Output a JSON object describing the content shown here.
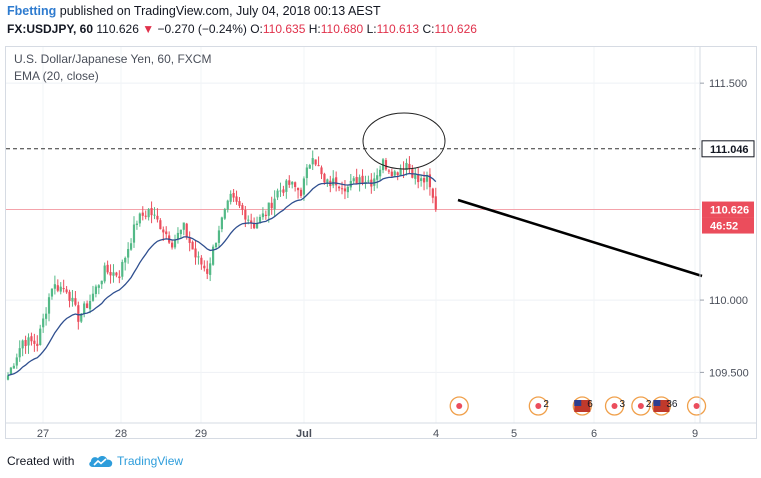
{
  "header": {
    "user": "Fbetting",
    "published_text": "published on TradingView.com, July 04, 2018 00:13 AEST",
    "symbol": "FX:USDJPY, 60",
    "last": "110.626",
    "arrow": "▼",
    "change": "−0.270 (−0.24%)",
    "o_label": "O:",
    "o_value": "110.635",
    "h_label": "H:",
    "h_value": "110.680",
    "l_label": "L:",
    "l_value": "110.613",
    "c_label": "C:",
    "c_value": "110.626"
  },
  "legend": {
    "title": "U.S. Dollar/Japanese Yen, 60, FXCM",
    "ema": "EMA (20, close)"
  },
  "footer": {
    "created_text": "Created with",
    "brand": "TradingView",
    "logo_icon": "tradingview-cloud-icon"
  },
  "colors": {
    "up": "#53b987",
    "down": "#eb4d5c",
    "ema": "#2f4f8f",
    "price_tag": "#eb4d5c",
    "event_ring": "#f0a04b",
    "event_dot": "#eb4d5c",
    "brand_blue": "#2e9ddb"
  },
  "chart_data": {
    "type": "candlestick",
    "symbol": "U.S. Dollar/Japanese Yen, 60, FXCM",
    "ylim": [
      109.15,
      111.75
    ],
    "y_ticks": [
      "111.500",
      "111.046",
      "110.626",
      "110.000",
      "109.500"
    ],
    "y_tick_values": [
      111.5,
      111.046,
      110.626,
      110.0,
      109.5
    ],
    "x_tick_labels": [
      "27",
      "28",
      "29",
      "Jul",
      "4",
      "5",
      "6",
      "9"
    ],
    "current_price": "110.626",
    "countdown": "46:52",
    "resistance_level": 111.046,
    "resistance_label": "111.046",
    "anchors": [
      {
        "i": 0,
        "v": 109.48
      },
      {
        "i": 5,
        "v": 109.72
      },
      {
        "i": 10,
        "v": 109.7
      },
      {
        "i": 15,
        "v": 110.1
      },
      {
        "i": 20,
        "v": 110.08
      },
      {
        "i": 24,
        "v": 109.88
      },
      {
        "i": 28,
        "v": 110.0
      },
      {
        "i": 33,
        "v": 110.2
      },
      {
        "i": 38,
        "v": 110.18
      },
      {
        "i": 44,
        "v": 110.55
      },
      {
        "i": 48,
        "v": 110.62
      },
      {
        "i": 52,
        "v": 110.52
      },
      {
        "i": 56,
        "v": 110.4
      },
      {
        "i": 60,
        "v": 110.5
      },
      {
        "i": 64,
        "v": 110.3
      },
      {
        "i": 68,
        "v": 110.2
      },
      {
        "i": 72,
        "v": 110.5
      },
      {
        "i": 76,
        "v": 110.7
      },
      {
        "i": 80,
        "v": 110.62
      },
      {
        "i": 84,
        "v": 110.52
      },
      {
        "i": 88,
        "v": 110.6
      },
      {
        "i": 92,
        "v": 110.75
      },
      {
        "i": 96,
        "v": 110.8
      },
      {
        "i": 100,
        "v": 110.75
      },
      {
        "i": 104,
        "v": 111.02
      },
      {
        "i": 108,
        "v": 110.8
      },
      {
        "i": 112,
        "v": 110.82
      },
      {
        "i": 116,
        "v": 110.78
      },
      {
        "i": 120,
        "v": 110.85
      },
      {
        "i": 124,
        "v": 110.82
      },
      {
        "i": 128,
        "v": 110.95
      },
      {
        "i": 132,
        "v": 110.88
      },
      {
        "i": 136,
        "v": 110.95
      },
      {
        "i": 140,
        "v": 110.82
      },
      {
        "i": 143,
        "v": 110.83
      },
      {
        "i": 146,
        "v": 110.63
      }
    ],
    "bar_count": 147,
    "ema_period": 20,
    "annotations": {
      "circle_around_top": true,
      "trendline_projection": {
        "from_bar": 150,
        "from_price": 110.67,
        "to_bar": 272,
        "to_price": 110.06
      }
    },
    "events": [
      {
        "bar": 154,
        "count": ""
      },
      {
        "bar": 181,
        "count": "2"
      },
      {
        "bar": 196,
        "count": "6",
        "flag": true
      },
      {
        "bar": 207,
        "count": "3"
      },
      {
        "bar": 216,
        "count": "2"
      },
      {
        "bar": 223,
        "count": "36",
        "flag": true
      },
      {
        "bar": 235,
        "count": ""
      }
    ]
  }
}
